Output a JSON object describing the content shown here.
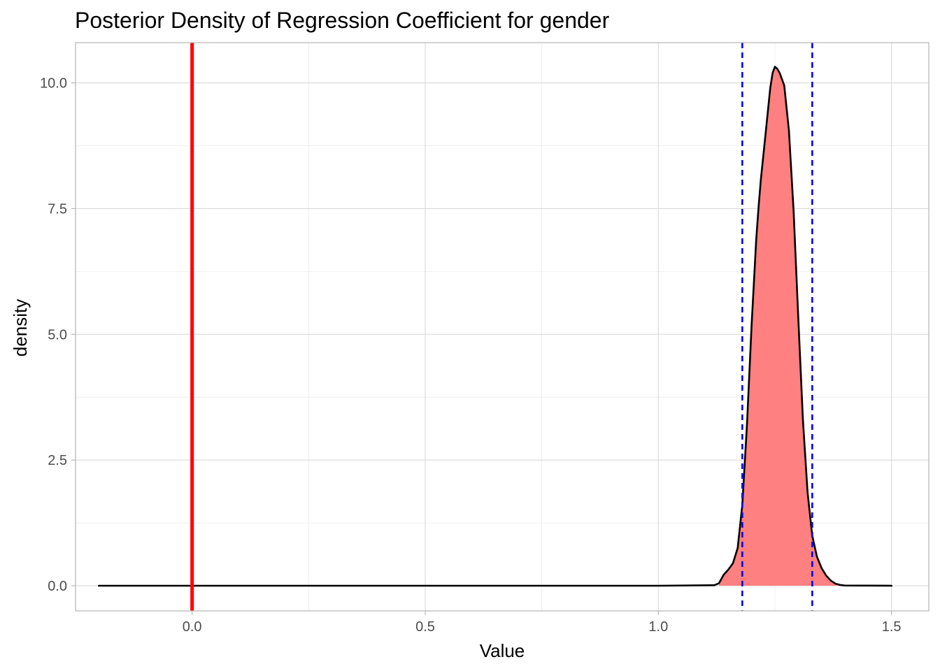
{
  "chart_data": {
    "type": "area",
    "title": "Posterior Density of Regression Coefficient for gender",
    "xlabel": "Value",
    "ylabel": "density",
    "xlim": [
      -0.25,
      1.58
    ],
    "ylim": [
      -0.5,
      10.8
    ],
    "x_ticks": [
      0.0,
      0.5,
      1.0,
      1.5
    ],
    "x_tick_labels": [
      "0.0",
      "0.5",
      "1.0",
      "1.5"
    ],
    "y_ticks": [
      0.0,
      2.5,
      5.0,
      7.5,
      10.0
    ],
    "y_tick_labels": [
      "0.0",
      "2.5",
      "5.0",
      "7.5",
      "10.0"
    ],
    "grid": true,
    "reference_line": {
      "x": 0.0,
      "color": "#ff0000",
      "style": "solid"
    },
    "interval_lines": {
      "x": [
        1.18,
        1.33
      ],
      "color": "#0000ff",
      "style": "dashed"
    },
    "fill_color": "#ff8080",
    "line_color": "#000000",
    "fill_range": [
      1.13,
      1.4
    ],
    "series": [
      {
        "x": [
          -0.2,
          1.0,
          1.12,
          1.13,
          1.14,
          1.15,
          1.16,
          1.17,
          1.18,
          1.19,
          1.2,
          1.21,
          1.215,
          1.22,
          1.23,
          1.24,
          1.245,
          1.25,
          1.255,
          1.26,
          1.27,
          1.28,
          1.29,
          1.3,
          1.31,
          1.32,
          1.33,
          1.34,
          1.35,
          1.36,
          1.37,
          1.38,
          1.39,
          1.4,
          1.5
        ],
        "y": [
          0.0,
          0.0,
          0.01,
          0.05,
          0.22,
          0.32,
          0.45,
          0.75,
          1.6,
          3.2,
          5.2,
          6.9,
          7.55,
          8.1,
          9.0,
          9.9,
          10.2,
          10.32,
          10.28,
          10.2,
          9.95,
          9.05,
          7.45,
          5.35,
          3.3,
          1.85,
          1.0,
          0.58,
          0.35,
          0.2,
          0.1,
          0.04,
          0.015,
          0.005,
          0.0
        ]
      }
    ]
  }
}
